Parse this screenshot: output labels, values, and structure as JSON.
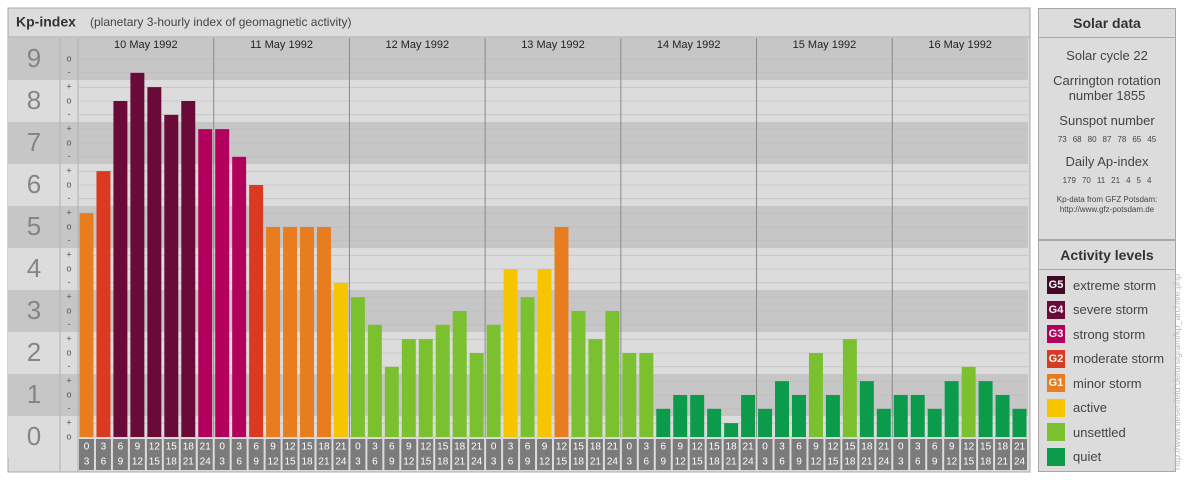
{
  "chart_data": {
    "type": "bar",
    "title": "Kp-index",
    "subtitle": "(planetary 3-hourly index of geomagnetic activity)",
    "days": [
      "10 May 1992",
      "11 May 1992",
      "12 May 1992",
      "13 May 1992",
      "14 May 1992",
      "15 May 1992",
      "16 May 1992"
    ],
    "hours": [
      [
        "0",
        "3"
      ],
      [
        "3",
        "6"
      ],
      [
        "6",
        "9"
      ],
      [
        "9",
        "12"
      ],
      [
        "12",
        "15"
      ],
      [
        "15",
        "18"
      ],
      [
        "18",
        "21"
      ],
      [
        "21",
        "24"
      ]
    ],
    "values": [
      5.33,
      6.33,
      8,
      8.67,
      8.33,
      7.67,
      8,
      7.33,
      7.33,
      6.67,
      6,
      5,
      5,
      5,
      5,
      3.67,
      3.33,
      2.67,
      1.67,
      2.33,
      2.33,
      2.67,
      3,
      2,
      2.67,
      4,
      3.33,
      4,
      5,
      3,
      2.33,
      3,
      2,
      2,
      0.67,
      1,
      1,
      0.67,
      0.33,
      1,
      0.67,
      1.33,
      1,
      2,
      1,
      2.33,
      1.33,
      0.67,
      1,
      1,
      0.67,
      1.33,
      1.67,
      1.33,
      1,
      0.67
    ],
    "colors": [
      "#e77d1f",
      "#d93a21",
      "#6a0a38",
      "#6a0a38",
      "#6a0a38",
      "#6a0a38",
      "#6a0a38",
      "#b3005c",
      "#b3005c",
      "#b3005c",
      "#d93a21",
      "#e77d1f",
      "#e77d1f",
      "#e77d1f",
      "#e77d1f",
      "#f7c400",
      "#7bc12f",
      "#7bc12f",
      "#7bc12f",
      "#7bc12f",
      "#7bc12f",
      "#7bc12f",
      "#7bc12f",
      "#7bc12f",
      "#7bc12f",
      "#f7c400",
      "#7bc12f",
      "#f7c400",
      "#e77d1f",
      "#7bc12f",
      "#7bc12f",
      "#7bc12f",
      "#7bc12f",
      "#7bc12f",
      "#0c9a4b",
      "#0c9a4b",
      "#0c9a4b",
      "#0c9a4b",
      "#0c9a4b",
      "#0c9a4b",
      "#0c9a4b",
      "#0c9a4b",
      "#0c9a4b",
      "#7bc12f",
      "#0c9a4b",
      "#7bc12f",
      "#0c9a4b",
      "#0c9a4b",
      "#0c9a4b",
      "#0c9a4b",
      "#0c9a4b",
      "#0c9a4b",
      "#7bc12f",
      "#0c9a4b",
      "#0c9a4b",
      "#0c9a4b"
    ],
    "ylim": [
      0,
      9
    ],
    "yticks": [
      0,
      1,
      2,
      3,
      4,
      5,
      6,
      7,
      8,
      9
    ],
    "yticks_minor": [
      {
        "value": 0,
        "label": "o"
      },
      {
        "value": 0.33,
        "label": "+"
      },
      {
        "value": 0.67,
        "label": "-"
      },
      {
        "value": 1,
        "label": "o"
      },
      {
        "value": 1.33,
        "label": "+"
      },
      {
        "value": 1.67,
        "label": "-"
      },
      {
        "value": 2,
        "label": "o"
      },
      {
        "value": 2.33,
        "label": "+"
      },
      {
        "value": 2.67,
        "label": "-"
      },
      {
        "value": 3,
        "label": "o"
      },
      {
        "value": 3.33,
        "label": "+"
      },
      {
        "value": 3.67,
        "label": "-"
      },
      {
        "value": 4,
        "label": "o"
      },
      {
        "value": 4.33,
        "label": "+"
      },
      {
        "value": 4.67,
        "label": "-"
      },
      {
        "value": 5,
        "label": "o"
      },
      {
        "value": 5.33,
        "label": "+"
      },
      {
        "value": 5.67,
        "label": "-"
      },
      {
        "value": 6,
        "label": "o"
      },
      {
        "value": 6.33,
        "label": "+"
      },
      {
        "value": 6.67,
        "label": "-"
      },
      {
        "value": 7,
        "label": "o"
      },
      {
        "value": 7.33,
        "label": "+"
      },
      {
        "value": 7.67,
        "label": "-"
      },
      {
        "value": 8,
        "label": "o"
      },
      {
        "value": 8.33,
        "label": "+"
      },
      {
        "value": 8.67,
        "label": "-"
      },
      {
        "value": 9,
        "label": "o"
      }
    ],
    "grid": true
  },
  "solar_data": {
    "title": "Solar data",
    "cycle": "Solar cycle 22",
    "carrington": "Carrington rotation number 1855",
    "sunspot_label": "Sunspot number",
    "sunspot": [
      73,
      68,
      80,
      87,
      78,
      65,
      45
    ],
    "ap_label": "Daily Ap-index",
    "ap": [
      179,
      70,
      11,
      21,
      4,
      5,
      4
    ],
    "source": "Kp-data from GFZ Potsdam:",
    "source_url": "http://www.gfz-potsdam.de"
  },
  "activity_levels": {
    "title": "Activity levels",
    "items": [
      {
        "badge": "G5",
        "label": "extreme storm",
        "color": "#3f0a26"
      },
      {
        "badge": "G4",
        "label": "severe storm",
        "color": "#6a0a38"
      },
      {
        "badge": "G3",
        "label": "strong storm",
        "color": "#b3005c"
      },
      {
        "badge": "G2",
        "label": "moderate storm",
        "color": "#d93a21"
      },
      {
        "badge": "G1",
        "label": "minor storm",
        "color": "#e77d1f"
      },
      {
        "label": "active",
        "color": "#f7c400"
      },
      {
        "label": "unsettled",
        "color": "#7bc12f"
      },
      {
        "label": "quiet",
        "color": "#0c9a4b"
      }
    ]
  },
  "watermark": "http://www.tiesenfeld.de/ursigram/kp_archive.php"
}
